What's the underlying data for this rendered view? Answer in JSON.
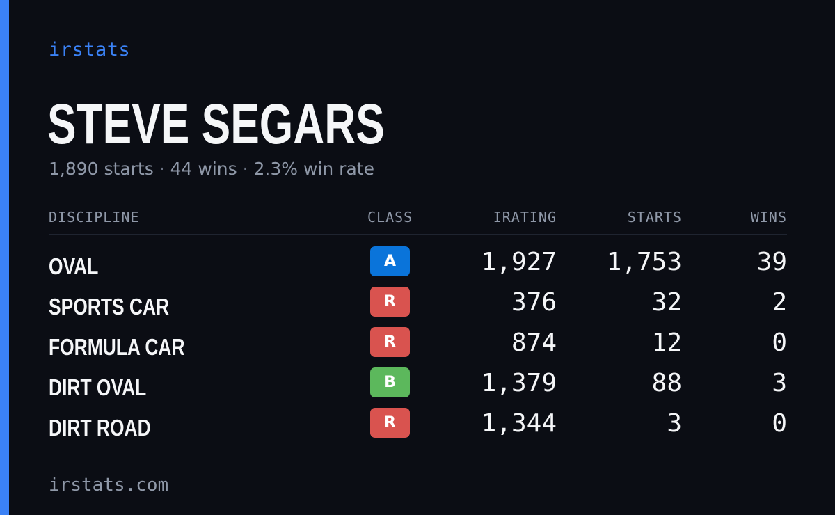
{
  "brand": "irstats",
  "driver": {
    "name": "STEVE SEGARS",
    "starts_text": "1,890 starts",
    "wins_text": "44 wins",
    "win_rate_text": "2.3% win rate",
    "separator": "·"
  },
  "table": {
    "headers": {
      "discipline": "DISCIPLINE",
      "class": "CLASS",
      "irating": "IRATING",
      "starts": "STARTS",
      "wins": "WINS"
    },
    "rows": [
      {
        "discipline": "OVAL",
        "class": "A",
        "class_color": "#0a74da",
        "irating": "1,927",
        "starts": "1,753",
        "wins": "39"
      },
      {
        "discipline": "SPORTS CAR",
        "class": "R",
        "class_color": "#d9534f",
        "irating": "376",
        "starts": "32",
        "wins": "2"
      },
      {
        "discipline": "FORMULA CAR",
        "class": "R",
        "class_color": "#d9534f",
        "irating": "874",
        "starts": "12",
        "wins": "0"
      },
      {
        "discipline": "DIRT OVAL",
        "class": "B",
        "class_color": "#5cb85c",
        "irating": "1,379",
        "starts": "88",
        "wins": "3"
      },
      {
        "discipline": "DIRT ROAD",
        "class": "R",
        "class_color": "#d9534f",
        "irating": "1,344",
        "starts": "3",
        "wins": "0"
      }
    ]
  },
  "footer": "irstats.com",
  "colors": {
    "accent": "#3b82f6",
    "background": "#0b0d14"
  }
}
